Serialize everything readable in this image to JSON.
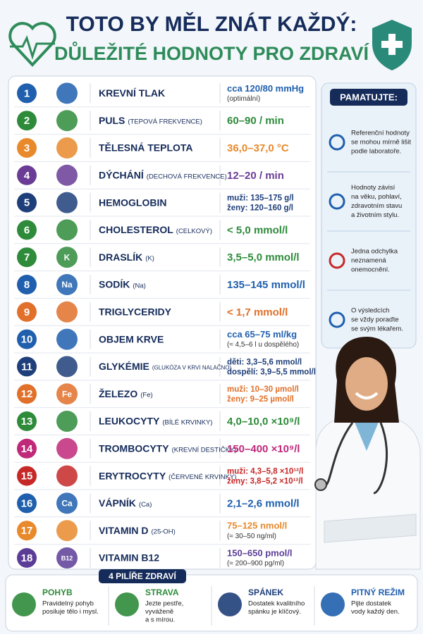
{
  "header": {
    "title": "TOTO BY MĚL ZNÁT KAŽDÝ:",
    "subtitle": "DŮLEŽITÉ HODNOTY PRO ZDRAVÍ"
  },
  "rows": [
    {
      "number": 1,
      "label": "KREVNÍ TLAK",
      "values": [
        "cca 120/80 mmHg"
      ],
      "sub": "(optimální)",
      "color": "#1f5fae"
    },
    {
      "number": 2,
      "label": "PULS",
      "note": "(TEPOVÁ FREKVENCE)",
      "values": [
        "60–90 / min"
      ],
      "color": "#2e8b3a"
    },
    {
      "number": 3,
      "label": "TĚLESNÁ TEPLOTA",
      "values": [
        "36,0–37,0 °C"
      ],
      "color": "#e8892b"
    },
    {
      "number": 4,
      "label": "DÝCHÁNÍ",
      "note": "(DECHOVÁ FREKVENCE)",
      "values": [
        "12–20 / min"
      ],
      "color": "#6a3c96"
    },
    {
      "number": 5,
      "label": "HEMOGLOBIN",
      "values": [
        "muži:  135–175 g/l",
        "ženy:  120–160 g/l"
      ],
      "color": "#1f3f7a"
    },
    {
      "number": 6,
      "label": "CHOLESTEROL",
      "note": "(CELKOVÝ)",
      "values": [
        "< 5,0 mmol/l"
      ],
      "color": "#2e8b3a"
    },
    {
      "number": 7,
      "label": "DRASLÍK",
      "note": "(K)",
      "icon_label": "K",
      "values": [
        "3,5–5,0 mmol/l"
      ],
      "color": "#2e8b3a"
    },
    {
      "number": 8,
      "label": "SODÍK",
      "note": "(Na)",
      "icon_label": "Na",
      "values": [
        "135–145 mmol/l"
      ],
      "color": "#1f5fae"
    },
    {
      "number": 9,
      "label": "TRIGLYCERIDY",
      "values": [
        "< 1,7 mmol/l"
      ],
      "color": "#e0702a"
    },
    {
      "number": 10,
      "label": "OBJEM KRVE",
      "values": [
        "cca 65–75 ml/kg"
      ],
      "sub": "(≈ 4,5–6 l u dospělého)",
      "color": "#1f5fae"
    },
    {
      "number": 11,
      "label": "GLYKÉMIE",
      "note": "(GLUKÓZA V KRVI NALAČNO)",
      "values": [
        "děti:  3,3–5,6 mmol/l",
        "dospělí: 3,9–5,5 mmol/l"
      ],
      "color": "#1f3f7a"
    },
    {
      "number": 12,
      "label": "ŽELEZO",
      "note": "(Fe)",
      "icon_label": "Fe",
      "values": [
        "muži: 10–30 µmol/l",
        "ženy: 9–25 µmol/l"
      ],
      "color": "#e0702a"
    },
    {
      "number": 13,
      "label": "LEUKOCYTY",
      "note": "(BÍLÉ KRVINKY)",
      "values": [
        "4,0–10,0 ×10⁹/l"
      ],
      "color": "#2e8b3a"
    },
    {
      "number": 14,
      "label": "TROMBOCYTY",
      "note": "(KREVNÍ DESTIČKY)",
      "values": [
        "150–400 ×10⁹/l"
      ],
      "color": "#c0287a"
    },
    {
      "number": 15,
      "label": "ERYTROCYTY",
      "note": "(ČERVENÉ KRVINKY)",
      "values": [
        "muži: 4,3–5,8 ×10¹²/l",
        "ženy: 3,8–5,2 ×10¹²/l"
      ],
      "color": "#c62828"
    },
    {
      "number": 16,
      "label": "VÁPNÍK",
      "note": "(Ca)",
      "icon_label": "Ca",
      "values": [
        "2,1–2,6 mmol/l"
      ],
      "color": "#1f5fae"
    },
    {
      "number": 17,
      "label": "VITAMIN D",
      "note": "(25-OH)",
      "values": [
        "75–125 nmol/l"
      ],
      "sub": "(≈ 30–50 ng/ml)",
      "color": "#e8892b"
    },
    {
      "number": 18,
      "label": "VITAMIN B12",
      "icon_label": "B12",
      "values": [
        "150–650 pmol/l"
      ],
      "sub": "(≈ 200–900 pg/ml)",
      "color": "#5b3c96"
    }
  ],
  "sidebar": {
    "title": "PAMATUJTE:",
    "notes": [
      [
        "Referenční hodnoty",
        "se mohou mírně lišit",
        "podle laboratoře."
      ],
      [
        "Hodnoty závisí",
        "na věku, pohlaví,",
        "zdravotním stavu",
        "a životním stylu."
      ],
      [
        "Jedna odchylka",
        "neznamená",
        "onemocnění."
      ],
      [
        "O výsledcích",
        "se vždy poraďte",
        "se svým lékařem."
      ]
    ]
  },
  "footer": {
    "title": "4 PILÍŘE ZDRAVÍ",
    "pillars": [
      {
        "name": "POHYB",
        "lines": [
          "Pravidelný pohyb",
          "posiluje tělo i mysl."
        ],
        "color": "#2e8b3a"
      },
      {
        "name": "STRAVA",
        "lines": [
          "Jezte pestře,",
          "vyváženě",
          "a s mírou."
        ],
        "color": "#2e8b3a"
      },
      {
        "name": "SPÁNEK",
        "lines": [
          "Dostatek kvalitního",
          "spánku je klíčový."
        ],
        "color": "#1f3f7a"
      },
      {
        "name": "PITNÝ REŽIM",
        "lines": [
          "Pijte dostatek",
          "vody každý den."
        ],
        "color": "#1f5fae"
      }
    ]
  }
}
